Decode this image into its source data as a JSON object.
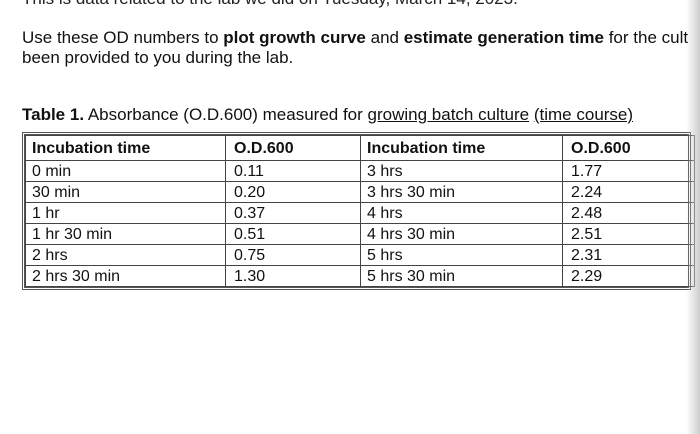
{
  "top_line": "This is data related to the lab we did on Tuesday, March 14, 2023.",
  "intro": {
    "part1": "Use these OD numbers to ",
    "bold1": "plot growth curve",
    "part2": " and ",
    "bold2": "estimate generation time",
    "part3": " for the cult",
    "line2": "been provided to you during the lab."
  },
  "caption": {
    "label": "Table 1.",
    "text1": " Absorbance (O.D.600) measured for ",
    "link1": "growing batch culture",
    "space": " ",
    "link2": "(time course)"
  },
  "table": {
    "headers": [
      "Incubation time",
      "O.D.600",
      "Incubation time",
      "O.D.600"
    ],
    "rows": [
      [
        "0 min",
        "0.11",
        "3 hrs",
        "1.77"
      ],
      [
        "30 min",
        "0.20",
        "3 hrs 30 min",
        "2.24"
      ],
      [
        "1 hr",
        "0.37",
        "4 hrs",
        "2.48"
      ],
      [
        "1 hr 30 min",
        "0.51",
        "4 hrs 30 min",
        "2.51"
      ],
      [
        "2 hrs",
        "0.75",
        "5 hrs",
        "2.31"
      ],
      [
        "2 hrs 30 min",
        "1.30",
        "5 hrs 30 min",
        "2.29"
      ]
    ]
  }
}
